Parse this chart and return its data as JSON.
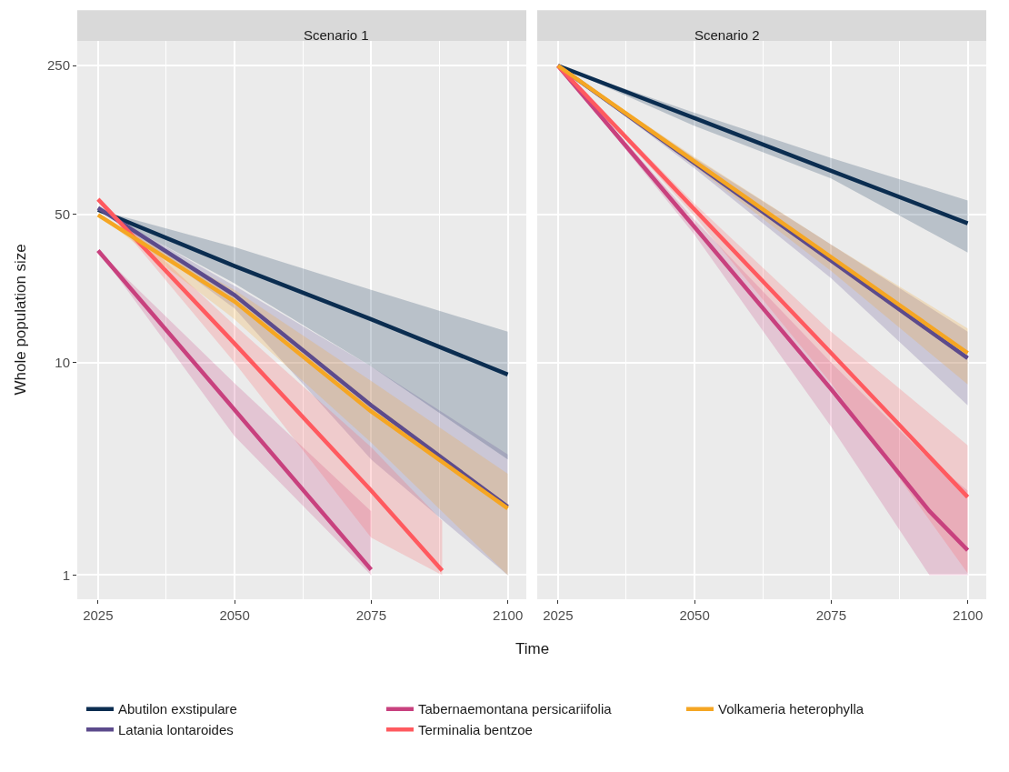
{
  "chart_data": [
    {
      "type": "line",
      "title": "Scenario 1",
      "xlabel": "Time",
      "ylabel": "Whole population size",
      "log": "y",
      "grid": true,
      "legend": "bottom",
      "line_style": "solid",
      "marker": "none",
      "xlim": [
        2021.2,
        2103.4
      ],
      "xticks": [
        2025,
        2050,
        2075,
        2100
      ],
      "ylim": [
        0.77,
        327
      ],
      "yticks": [
        1,
        10,
        50,
        250
      ],
      "series": [
        {
          "name": "Abutilon exstipulare",
          "color": "#0b2d50",
          "x": [
            2025,
            2050,
            2075,
            2100
          ],
          "values": [
            52.4,
            28.5,
            16.0,
            8.8
          ],
          "lower": [
            52.4,
            23.6,
            9.6,
            3.5
          ],
          "upper": [
            52.4,
            35,
            22,
            14
          ]
        },
        {
          "name": "Latania lontaroides",
          "color": "#5c4b8c",
          "x": [
            2025,
            2050,
            2075,
            2100
          ],
          "values": [
            53.5,
            20.8,
            6.3,
            2.1
          ],
          "lower": [
            53.5,
            18,
            3.5,
            1
          ],
          "upper": [
            53.5,
            23,
            9.6,
            3.7
          ]
        },
        {
          "name": "Tabernaemontana persicariifolia",
          "color": "#c8417e",
          "x": [
            2025,
            2050,
            2075
          ],
          "values": [
            33.7,
            6.0,
            1.06
          ],
          "lower": [
            33.7,
            4.5,
            1
          ],
          "upper": [
            33.7,
            8.0,
            2.0
          ]
        },
        {
          "name": "Terminalia bentzoe",
          "color": "#ff5a5f",
          "x": [
            2025,
            2050,
            2075,
            2088
          ],
          "values": [
            58.8,
            12.3,
            2.5,
            1.05
          ],
          "lower": [
            58.8,
            10,
            1.5,
            1
          ],
          "upper": [
            58.8,
            15,
            4,
            1.8
          ]
        },
        {
          "name": "Volkameria heterophylla",
          "color": "#f5a623",
          "x": [
            2025,
            2050,
            2075,
            2100
          ],
          "values": [
            49.6,
            19.4,
            5.9,
            2.06
          ],
          "lower": [
            49.6,
            16,
            4.2,
            1
          ],
          "upper": [
            49.6,
            22,
            8.2,
            3.0
          ]
        }
      ]
    },
    {
      "type": "line",
      "title": "Scenario 2",
      "log": "y",
      "grid": true,
      "tick_labels": "x",
      "line_style": "solid",
      "marker": "none",
      "xlim": [
        2021.2,
        2103.4
      ],
      "xticks": [
        2025,
        2050,
        2075,
        2100
      ],
      "ylim": [
        0.77,
        327
      ],
      "yticks": [
        1,
        10,
        50,
        250
      ],
      "series": [
        {
          "color": "#0b2d50",
          "x": [
            2025,
            2050,
            2075,
            2100
          ],
          "values": [
            250,
            141.6,
            80,
            45.3
          ],
          "lower": [
            250,
            130,
            73.6,
            33
          ],
          "upper": [
            250,
            150,
            92,
            58
          ]
        },
        {
          "color": "#5c4b8c",
          "x": [
            2025,
            2050,
            2075,
            2100
          ],
          "values": [
            250,
            86.9,
            30.2,
            10.5
          ],
          "lower": [
            250,
            82,
            25,
            6.3
          ],
          "upper": [
            250,
            92,
            36,
            14
          ]
        },
        {
          "color": "#c8417e",
          "x": [
            2025,
            2050,
            2075,
            2093,
            2100
          ],
          "values": [
            250,
            43.5,
            7.5,
            2.0,
            1.31
          ],
          "lower": [
            250,
            40,
            5,
            1,
            1
          ],
          "upper": [
            250,
            47,
            10,
            3.5,
            2.5
          ]
        },
        {
          "color": "#ff5a5f",
          "x": [
            2025,
            2050,
            2075,
            2100
          ],
          "values": [
            250,
            52.6,
            11.1,
            2.33
          ],
          "lower": [
            250,
            49,
            8,
            1.02
          ],
          "upper": [
            250,
            56,
            14,
            4.08
          ]
        },
        {
          "color": "#f5a623",
          "x": [
            2025,
            2050,
            2075,
            2100
          ],
          "values": [
            250,
            88.5,
            31.4,
            11.1
          ],
          "lower": [
            250,
            84,
            27,
            7.9
          ],
          "upper": [
            250,
            93,
            36,
            14.5
          ]
        }
      ]
    }
  ]
}
